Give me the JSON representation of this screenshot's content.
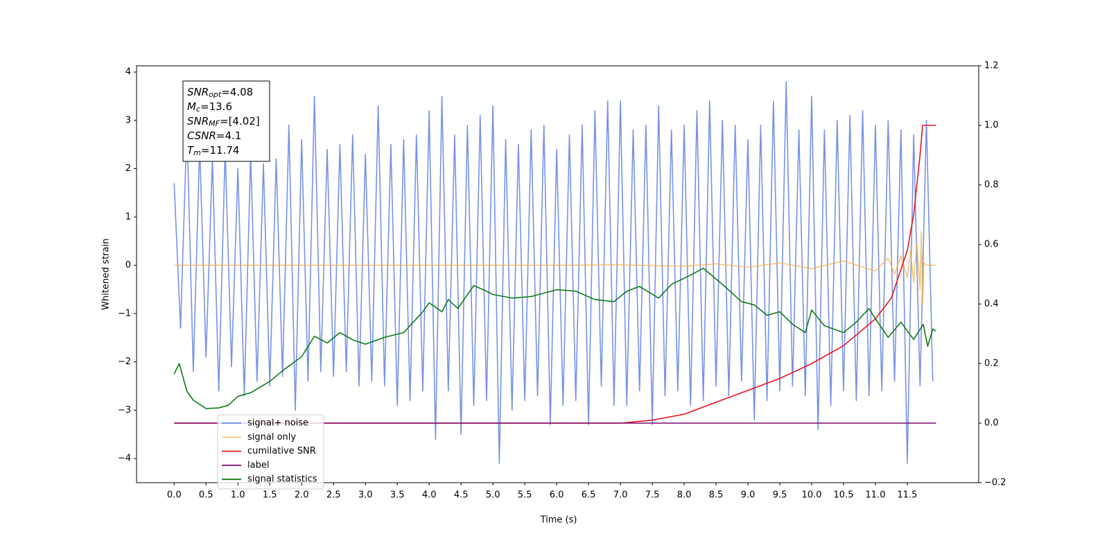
{
  "chart_data": {
    "type": "line",
    "xlabel": "Time (s)",
    "ylabel": "Whitened strain",
    "xlim": [
      -0.59,
      12.62
    ],
    "ylim": [
      -4.5,
      4.13
    ],
    "y2lim": [
      -0.2,
      1.2
    ],
    "xticks": [
      {
        "value": 0,
        "label": "0.0"
      },
      {
        "value": 0.5,
        "label": "0.5"
      },
      {
        "value": 1,
        "label": "1.0"
      },
      {
        "value": 1.5,
        "label": "1.5"
      },
      {
        "value": 2,
        "label": "2.0"
      },
      {
        "value": 2.5,
        "label": "2.5"
      },
      {
        "value": 3,
        "label": "3.0"
      },
      {
        "value": 3.5,
        "label": "3.5"
      },
      {
        "value": 4,
        "label": "4.0"
      },
      {
        "value": 4.5,
        "label": "4.5"
      },
      {
        "value": 5,
        "label": "5.0"
      },
      {
        "value": 5.5,
        "label": "5.5"
      },
      {
        "value": 6,
        "label": "6.0"
      },
      {
        "value": 6.5,
        "label": "6.5"
      },
      {
        "value": 7,
        "label": "7.0"
      },
      {
        "value": 7.5,
        "label": "7.5"
      },
      {
        "value": 8,
        "label": "8.0"
      },
      {
        "value": 8.5,
        "label": "8.5"
      },
      {
        "value": 9,
        "label": "9.0"
      },
      {
        "value": 9.5,
        "label": "9.5"
      },
      {
        "value": 10,
        "label": "10.0"
      },
      {
        "value": 10.5,
        "label": "10.5"
      },
      {
        "value": 11,
        "label": "11.0"
      },
      {
        "value": 11.5,
        "label": "11.5"
      }
    ],
    "yticks": [
      {
        "value": -4,
        "label": "−4"
      },
      {
        "value": -3,
        "label": "−3"
      },
      {
        "value": -2,
        "label": "−2"
      },
      {
        "value": -1,
        "label": "−1"
      },
      0,
      1,
      2,
      3,
      4
    ],
    "y2ticks": [
      {
        "value": -0.2,
        "label": "−0.2"
      },
      {
        "value": 0,
        "label": "0.0"
      },
      {
        "value": 0.2,
        "label": "0.2"
      },
      {
        "value": 0.4,
        "label": "0.4"
      },
      {
        "value": 0.6,
        "label": "0.6"
      },
      {
        "value": 0.8,
        "label": "0.8"
      },
      {
        "value": 1,
        "label": "1.0"
      },
      {
        "value": 1.2,
        "label": "1.2"
      }
    ],
    "annotation": [
      {
        "name": "SNR",
        "sub": "opt",
        "text": "=4.08"
      },
      {
        "name": "M",
        "sub": "c",
        "text": "=13.6"
      },
      {
        "name": "SNR",
        "sub": "MF",
        "text": "=[4.02]"
      },
      {
        "name": "CSNR",
        "text": "=4.1"
      },
      {
        "name": "T",
        "sub": "m",
        "text": "=11.74"
      }
    ],
    "series": [
      {
        "name": "signal+ noise",
        "color": "#6f8ce6",
        "x": [
          0.0,
          0.1,
          0.2,
          0.3,
          0.4,
          0.5,
          0.6,
          0.7,
          0.8,
          0.9,
          1.0,
          1.1,
          1.2,
          1.3,
          1.4,
          1.5,
          1.6,
          1.7,
          1.8,
          1.9,
          2.0,
          2.1,
          2.2,
          2.3,
          2.4,
          2.5,
          2.6,
          2.7,
          2.8,
          2.9,
          3.0,
          3.1,
          3.2,
          3.3,
          3.4,
          3.5,
          3.6,
          3.7,
          3.8,
          3.9,
          4.0,
          4.1,
          4.2,
          4.3,
          4.4,
          4.5,
          4.6,
          4.7,
          4.8,
          4.9,
          5.0,
          5.1,
          5.2,
          5.3,
          5.4,
          5.5,
          5.6,
          5.7,
          5.8,
          5.9,
          6.0,
          6.1,
          6.2,
          6.3,
          6.4,
          6.5,
          6.6,
          6.7,
          6.8,
          6.9,
          7.0,
          7.1,
          7.2,
          7.3,
          7.4,
          7.5,
          7.6,
          7.7,
          7.8,
          7.9,
          8.0,
          8.1,
          8.2,
          8.3,
          8.4,
          8.5,
          8.6,
          8.7,
          8.8,
          8.9,
          9.0,
          9.1,
          9.2,
          9.3,
          9.4,
          9.5,
          9.6,
          9.7,
          9.8,
          9.9,
          10.0,
          10.1,
          10.2,
          10.3,
          10.4,
          10.5,
          10.6,
          10.7,
          10.8,
          10.9,
          11.0,
          11.1,
          11.2,
          11.3,
          11.4,
          11.5,
          11.6,
          11.7,
          11.8,
          11.9
        ],
        "values": [
          1.7,
          -1.3,
          2.9,
          -2.2,
          2.5,
          -1.9,
          2.2,
          -2.6,
          2.4,
          -2.1,
          2.0,
          -2.7,
          2.3,
          -2.4,
          2.1,
          -2.5,
          2.2,
          -2.3,
          2.9,
          -3.0,
          2.6,
          -2.4,
          3.5,
          -2.2,
          2.4,
          -2.3,
          2.5,
          -2.2,
          2.7,
          -2.5,
          2.3,
          -2.4,
          3.3,
          -2.5,
          2.5,
          -2.9,
          2.6,
          -2.8,
          2.7,
          -2.6,
          3.2,
          -3.6,
          3.5,
          -2.6,
          2.7,
          -3.5,
          2.9,
          -2.9,
          3.1,
          -2.8,
          3.3,
          -4.1,
          2.6,
          -3.0,
          2.5,
          -2.8,
          2.8,
          -2.7,
          2.9,
          -3.3,
          2.4,
          -2.9,
          2.7,
          -2.8,
          2.9,
          -3.3,
          3.2,
          -2.5,
          3.4,
          -2.9,
          3.4,
          -2.9,
          2.8,
          -2.6,
          2.9,
          -3.3,
          3.3,
          -2.7,
          2.8,
          -2.6,
          2.9,
          -2.9,
          3.2,
          -2.8,
          3.4,
          -2.5,
          3.0,
          -2.7,
          2.9,
          -2.4,
          2.6,
          -3.2,
          2.9,
          -2.8,
          3.4,
          -2.6,
          3.8,
          -2.5,
          2.8,
          -2.7,
          3.5,
          -3.4,
          2.8,
          -2.9,
          3.0,
          -2.6,
          3.1,
          -2.8,
          3.2,
          -2.7,
          2.9,
          -2.6,
          3.0,
          -2.4,
          2.8,
          -4.1,
          2.7,
          -2.5,
          3.0,
          -2.4
        ]
      },
      {
        "name": "signal only",
        "color": "#f5b041",
        "x": [
          0,
          2,
          4,
          6,
          7,
          8,
          8.5,
          9,
          9.5,
          10,
          10.5,
          11,
          11.2,
          11.3,
          11.4,
          11.5,
          11.55,
          11.6,
          11.65,
          11.7,
          11.72,
          11.74,
          11.76,
          11.8,
          11.95
        ],
        "values": [
          0,
          0,
          0,
          0,
          0.01,
          -0.02,
          0.03,
          -0.04,
          0.05,
          -0.07,
          0.09,
          -0.12,
          0.15,
          -0.18,
          0.2,
          -0.25,
          0.3,
          -0.35,
          0.45,
          -0.5,
          0.7,
          -0.8,
          0.05,
          0,
          0
        ]
      },
      {
        "name": "cumilative SNR",
        "color": "#e8141c",
        "axis": "y2",
        "x": [
          0,
          7,
          7.5,
          8,
          8.5,
          9,
          9.5,
          10,
          10.5,
          11,
          11.25,
          11.5,
          11.6,
          11.7,
          11.74,
          11.95
        ],
        "values": [
          0,
          0,
          0.01,
          0.03,
          0.07,
          0.11,
          0.15,
          0.2,
          0.26,
          0.35,
          0.42,
          0.58,
          0.7,
          0.9,
          1.0,
          1.0
        ]
      },
      {
        "name": "label",
        "color": "#7a0a6e",
        "axis": "y2",
        "x": [
          0,
          11.95
        ],
        "values": [
          0,
          0
        ]
      },
      {
        "name": "signal statistics",
        "color": "#117a11",
        "axis": "y2",
        "x": [
          0,
          0.08,
          0.2,
          0.3,
          0.5,
          0.7,
          0.85,
          1.0,
          1.2,
          1.5,
          1.7,
          2.0,
          2.2,
          2.4,
          2.6,
          2.8,
          3.0,
          3.3,
          3.6,
          3.9,
          4.0,
          4.2,
          4.3,
          4.45,
          4.7,
          4.9,
          5.0,
          5.3,
          5.6,
          6.0,
          6.3,
          6.6,
          6.9,
          7.1,
          7.3,
          7.6,
          7.8,
          8.1,
          8.3,
          8.6,
          8.9,
          9.1,
          9.3,
          9.5,
          9.7,
          9.9,
          10.0,
          10.2,
          10.5,
          10.7,
          10.9,
          11.0,
          11.2,
          11.4,
          11.6,
          11.75,
          11.82,
          11.9,
          11.95
        ],
        "values": [
          0.165,
          0.2,
          0.107,
          0.077,
          0.049,
          0.051,
          0.06,
          0.09,
          0.102,
          0.14,
          0.176,
          0.223,
          0.292,
          0.269,
          0.304,
          0.28,
          0.265,
          0.288,
          0.304,
          0.374,
          0.404,
          0.374,
          0.415,
          0.385,
          0.462,
          0.443,
          0.432,
          0.42,
          0.425,
          0.448,
          0.443,
          0.415,
          0.408,
          0.443,
          0.459,
          0.42,
          0.466,
          0.497,
          0.52,
          0.466,
          0.408,
          0.397,
          0.362,
          0.374,
          0.332,
          0.304,
          0.38,
          0.327,
          0.304,
          0.339,
          0.385,
          0.35,
          0.288,
          0.339,
          0.281,
          0.332,
          0.258,
          0.316,
          0.309
        ]
      }
    ]
  }
}
